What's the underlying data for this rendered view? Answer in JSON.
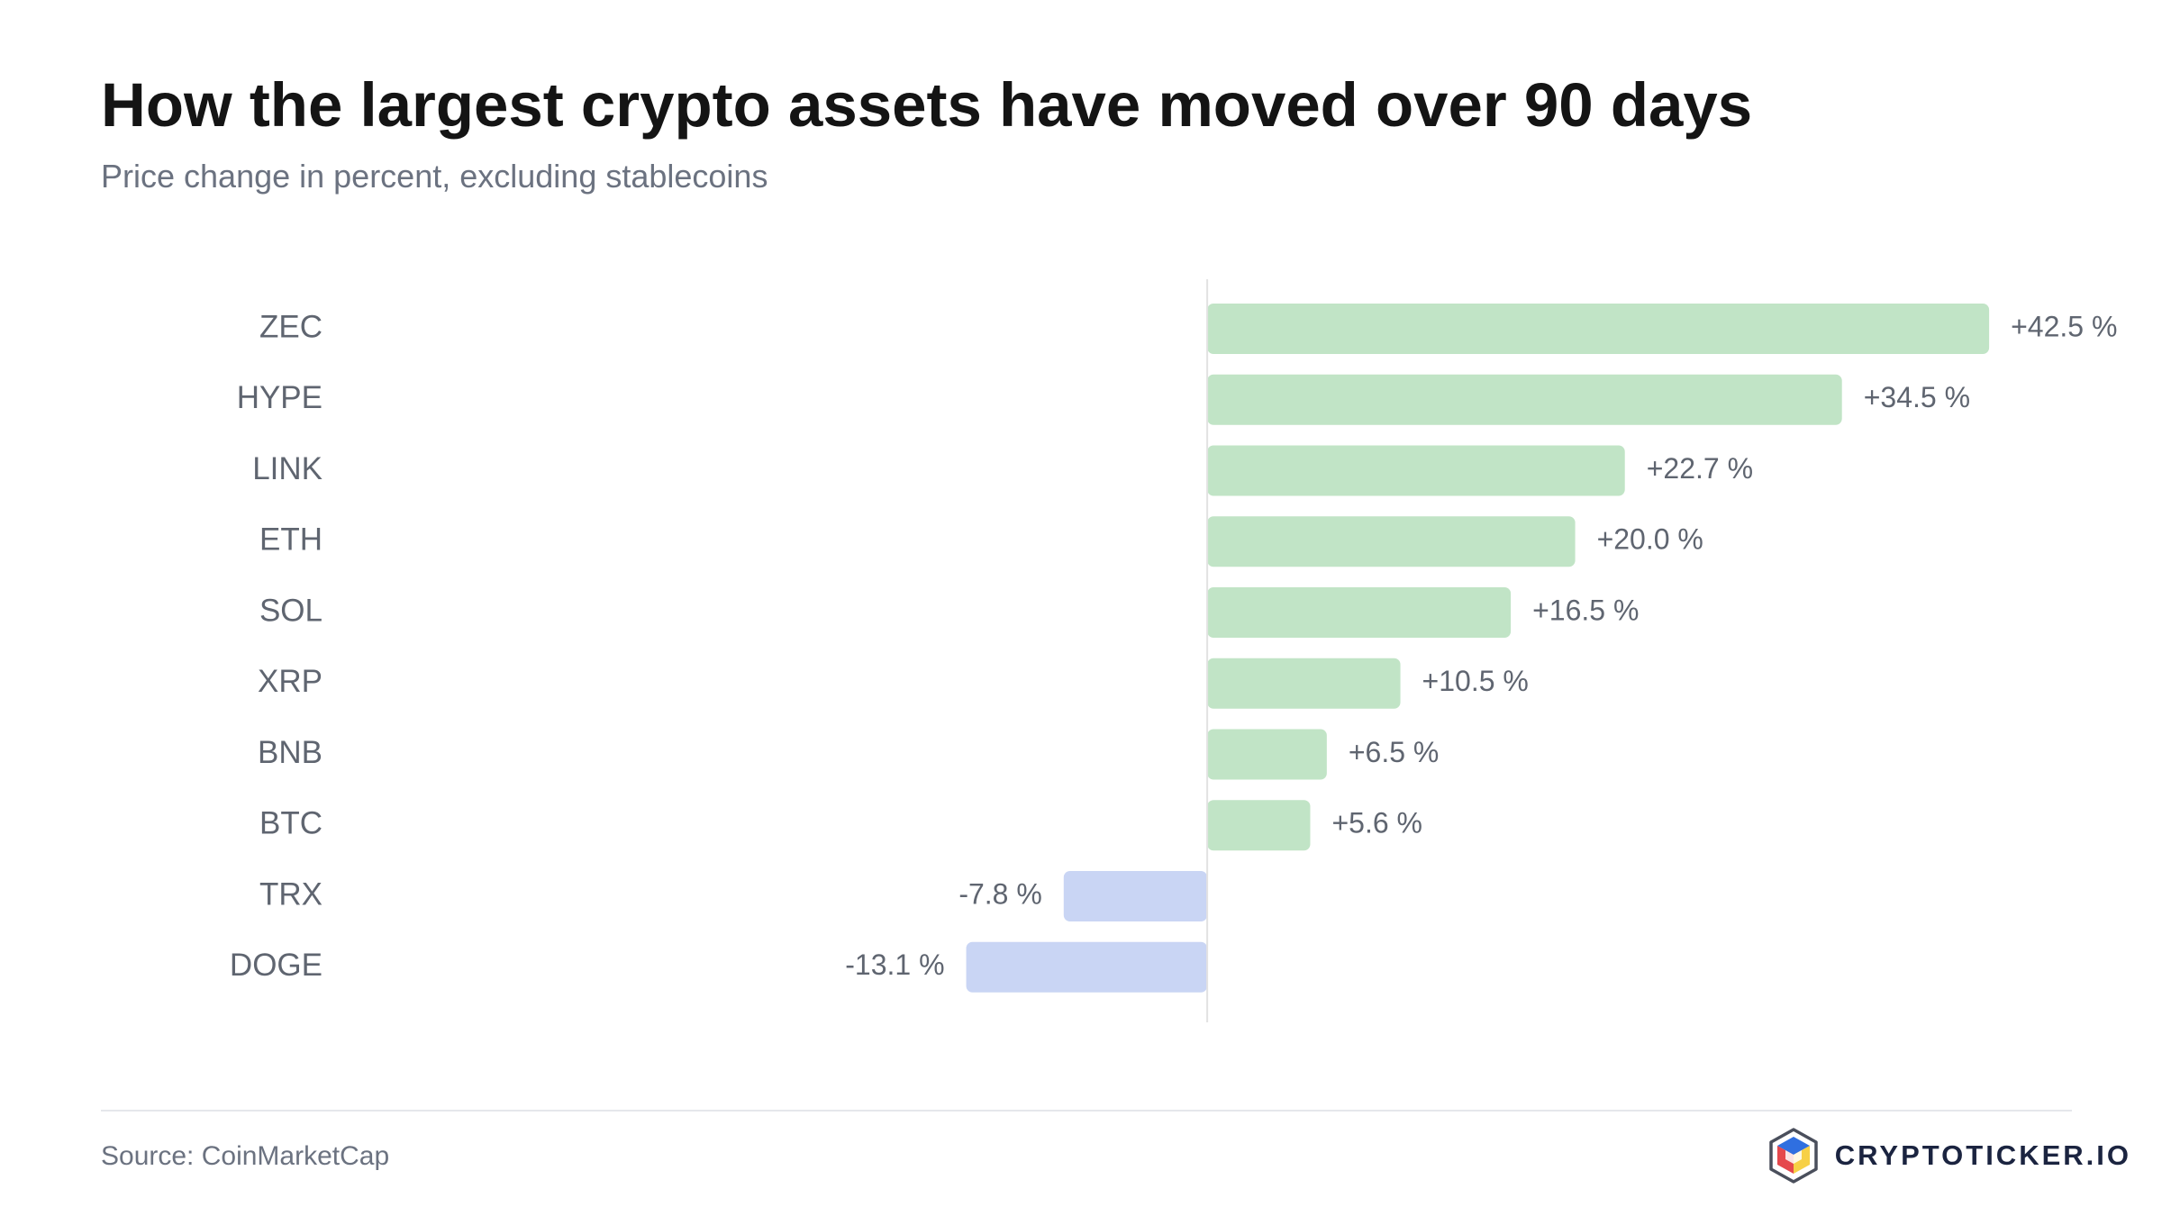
{
  "header": {
    "title": "How the largest crypto assets have moved over 90 days",
    "subtitle": "Price change in percent, excluding stablecoins"
  },
  "chart_data": {
    "type": "bar",
    "orientation": "horizontal",
    "categories": [
      "ZEC",
      "HYPE",
      "LINK",
      "ETH",
      "SOL",
      "XRP",
      "BNB",
      "BTC",
      "TRX",
      "DOGE"
    ],
    "values": [
      42.5,
      34.5,
      22.7,
      20.0,
      16.5,
      10.5,
      6.5,
      5.6,
      -7.8,
      -13.1
    ],
    "value_labels": [
      "+42.5 %",
      "+34.5 %",
      "+22.7 %",
      "+20.0 %",
      "+16.5 %",
      "+10.5 %",
      "+6.5 %",
      "+5.6 %",
      "-7.8 %",
      "-13.1 %"
    ],
    "xlim": [
      -47.5,
      47
    ],
    "colors": {
      "positive": "#c1e4c6",
      "negative": "#c9d5f4",
      "zero_line": "#e2e2e2",
      "category_text": "#5f6570",
      "value_text": "#5f6570",
      "inside_value_text": "#141414"
    },
    "grid": false,
    "legend": "none"
  },
  "footer": {
    "source": "Source: CoinMarketCap",
    "brand": "CRYPTOTICKER.IO",
    "brand_logo_icon": "cube-logo-icon"
  }
}
